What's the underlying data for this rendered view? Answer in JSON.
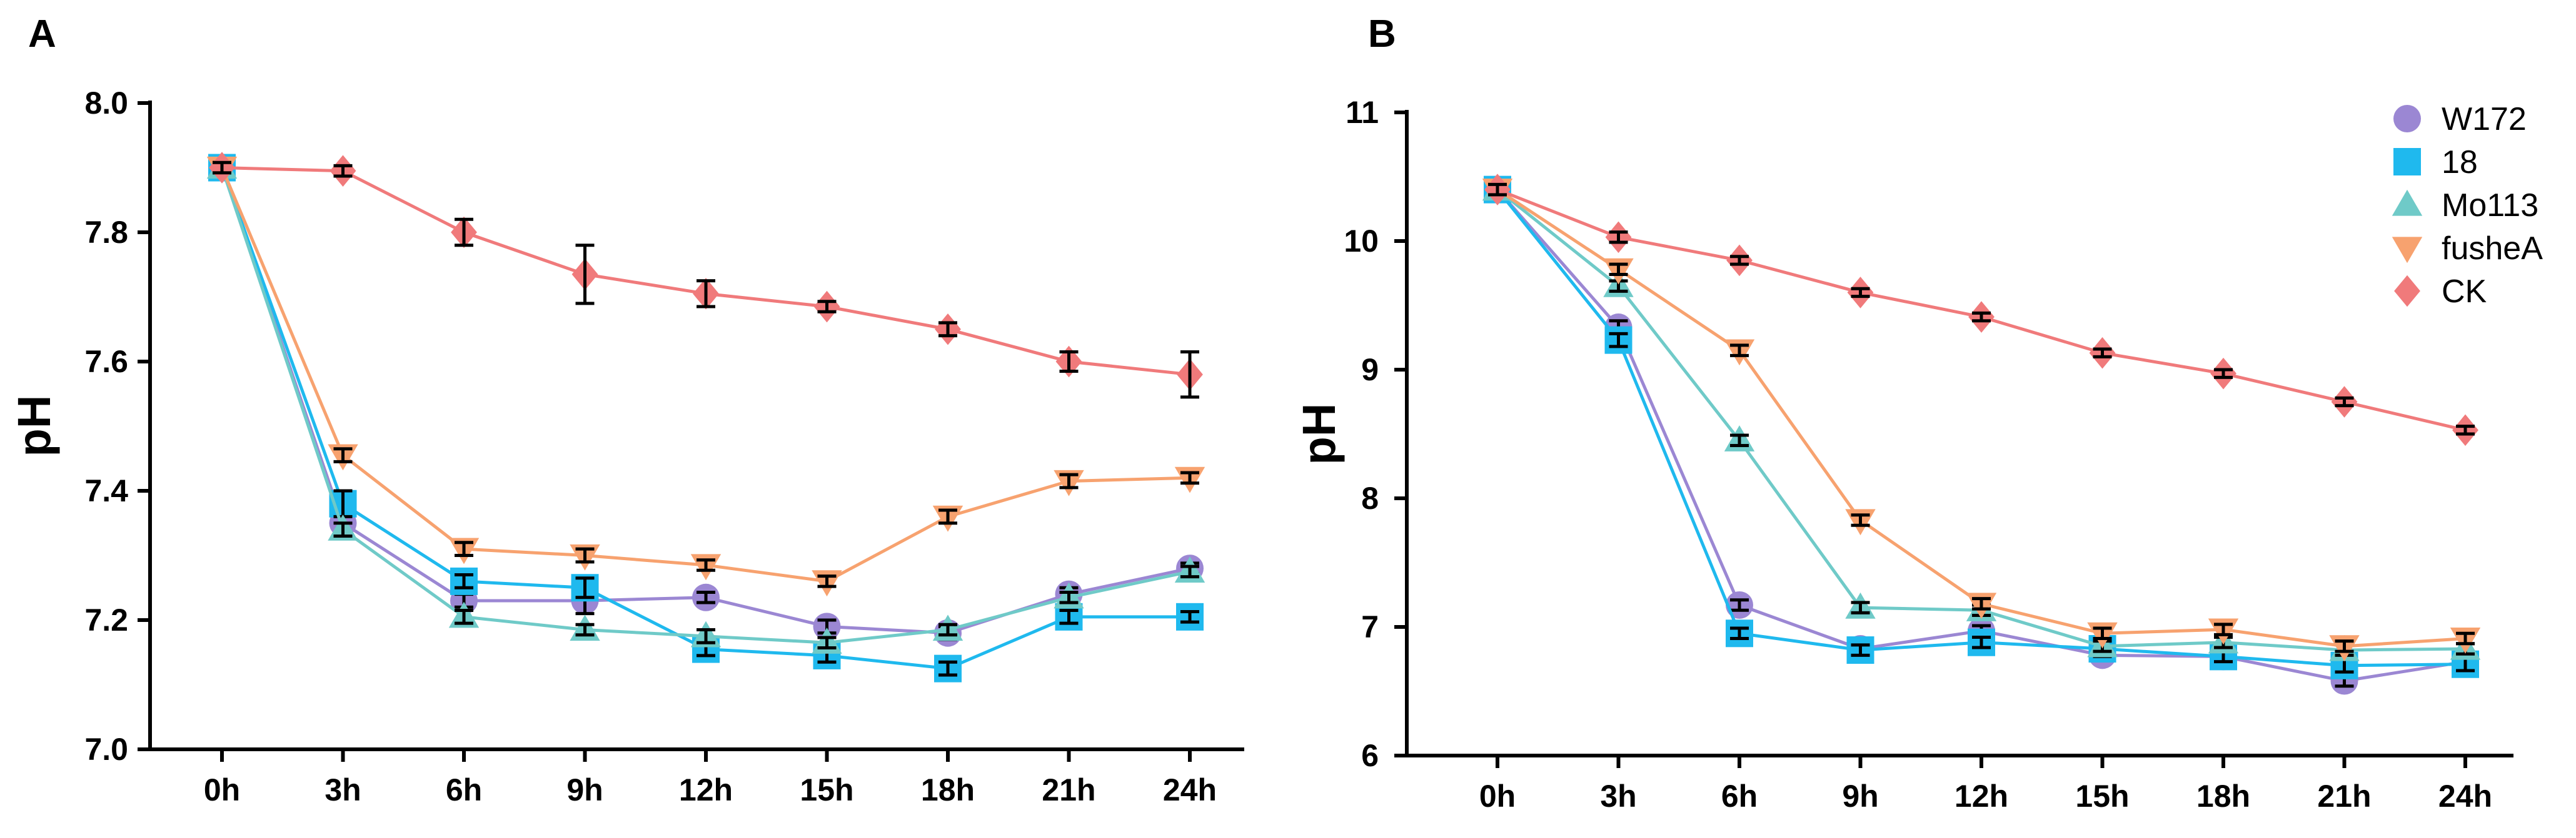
{
  "chart_data": [
    {
      "panel": "A",
      "type": "line",
      "title": "",
      "xlabel": "",
      "ylabel": "pH",
      "ylim": [
        7.0,
        8.0
      ],
      "yticks": [
        "7.0",
        "7.2",
        "7.4",
        "7.6",
        "7.8",
        "8.0"
      ],
      "categories": [
        "0h",
        "3h",
        "6h",
        "9h",
        "12h",
        "15h",
        "18h",
        "21h",
        "24h"
      ],
      "series": [
        {
          "name": "W172",
          "color": "#9B87D3",
          "marker": "circle",
          "values": [
            7.9,
            7.35,
            7.23,
            7.23,
            7.235,
            7.19,
            7.18,
            7.24,
            7.28
          ],
          "errors": [
            0.008,
            0.02,
            0.01,
            0.02,
            0.008,
            0.01,
            0.01,
            0.01,
            0.008
          ]
        },
        {
          "name": "18",
          "color": "#1FB9EE",
          "marker": "square",
          "values": [
            7.9,
            7.38,
            7.26,
            7.25,
            7.155,
            7.145,
            7.125,
            7.205,
            7.205
          ],
          "errors": [
            0.008,
            0.02,
            0.01,
            0.015,
            0.01,
            0.01,
            0.01,
            0.01,
            0.008
          ]
        },
        {
          "name": "Mo113",
          "color": "#6FCAC8",
          "marker": "triangle",
          "values": [
            7.9,
            7.34,
            7.205,
            7.185,
            7.175,
            7.165,
            7.185,
            7.235,
            7.275
          ],
          "errors": [
            0.008,
            0.01,
            0.01,
            0.008,
            0.01,
            0.008,
            0.008,
            0.008,
            0.008
          ]
        },
        {
          "name": "fusheA",
          "color": "#F7A26F",
          "marker": "triangle-down",
          "values": [
            7.9,
            7.455,
            7.31,
            7.3,
            7.285,
            7.26,
            7.36,
            7.415,
            7.42
          ],
          "errors": [
            0.008,
            0.01,
            0.01,
            0.01,
            0.008,
            0.008,
            0.01,
            0.01,
            0.008
          ]
        },
        {
          "name": "CK",
          "color": "#F07A7B",
          "marker": "diamond",
          "values": [
            7.9,
            7.895,
            7.8,
            7.735,
            7.705,
            7.685,
            7.65,
            7.6,
            7.58
          ],
          "errors": [
            0.008,
            0.008,
            0.02,
            0.045,
            0.02,
            0.008,
            0.01,
            0.015,
            0.035
          ]
        }
      ]
    },
    {
      "panel": "B",
      "type": "line",
      "title": "",
      "xlabel": "",
      "ylabel": "pH",
      "ylim": [
        6,
        11
      ],
      "yticks": [
        "6",
        "7",
        "8",
        "9",
        "10",
        "11"
      ],
      "categories": [
        "0h",
        "3h",
        "6h",
        "9h",
        "12h",
        "15h",
        "18h",
        "21h",
        "24h"
      ],
      "legend_position": "top-right",
      "series": [
        {
          "name": "W172",
          "color": "#9B87D3",
          "marker": "circle",
          "values": [
            10.4,
            9.33,
            7.17,
            6.83,
            6.97,
            6.78,
            6.77,
            6.58,
            6.73
          ],
          "errors": [
            0.04,
            0.05,
            0.04,
            0.04,
            0.04,
            0.04,
            0.04,
            0.04,
            0.04
          ]
        },
        {
          "name": "18",
          "color": "#1FB9EE",
          "marker": "square",
          "values": [
            10.4,
            9.23,
            6.95,
            6.82,
            6.88,
            6.83,
            6.77,
            6.7,
            6.71
          ],
          "errors": [
            0.04,
            0.05,
            0.04,
            0.04,
            0.04,
            0.06,
            0.04,
            0.05,
            0.05
          ]
        },
        {
          "name": "Mo113",
          "color": "#6FCAC8",
          "marker": "triangle",
          "values": [
            10.4,
            9.65,
            8.45,
            7.15,
            7.13,
            6.85,
            6.88,
            6.82,
            6.83
          ],
          "errors": [
            0.04,
            0.04,
            0.04,
            0.04,
            0.04,
            0.04,
            0.04,
            0.04,
            0.04
          ]
        },
        {
          "name": "fusheA",
          "color": "#F7A26F",
          "marker": "triangle-down",
          "values": [
            10.4,
            9.78,
            9.15,
            7.83,
            7.18,
            6.95,
            6.98,
            6.85,
            6.91
          ],
          "errors": [
            0.04,
            0.04,
            0.04,
            0.04,
            0.04,
            0.04,
            0.04,
            0.04,
            0.04
          ]
        },
        {
          "name": "CK",
          "color": "#F07A7B",
          "marker": "diamond",
          "values": [
            10.4,
            10.03,
            9.85,
            9.6,
            9.41,
            9.13,
            8.97,
            8.75,
            8.53
          ],
          "errors": [
            0.04,
            0.04,
            0.03,
            0.03,
            0.03,
            0.03,
            0.03,
            0.03,
            0.03
          ]
        }
      ]
    }
  ]
}
